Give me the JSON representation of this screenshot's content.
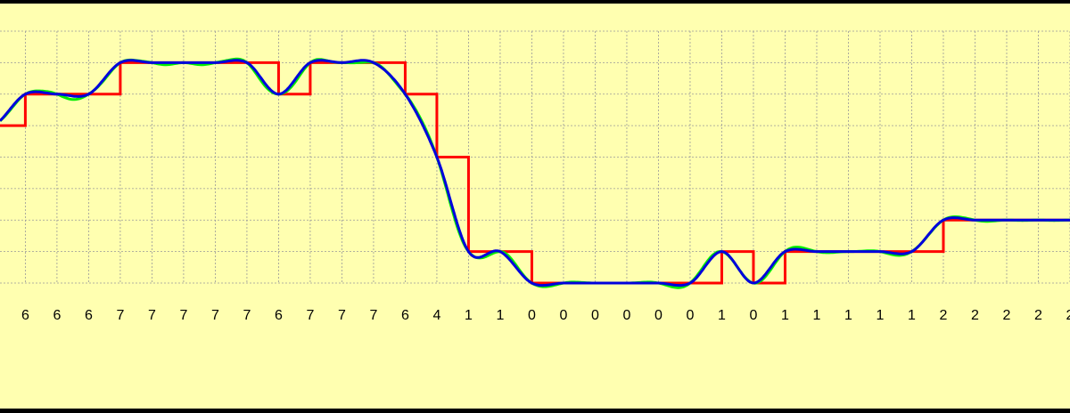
{
  "chart_data": {
    "type": "step",
    "samples": [
      5,
      6,
      6,
      6,
      7,
      7,
      7,
      7,
      7,
      6,
      7,
      7,
      7,
      6,
      4,
      1,
      1,
      0,
      0,
      0,
      0,
      0,
      0,
      1,
      0,
      1,
      1,
      1,
      1,
      1,
      2,
      2,
      2,
      2,
      2
    ],
    "xlim": [
      0.2,
      34
    ],
    "ylim": [
      0,
      8
    ],
    "yticks": [
      0,
      1,
      2,
      3,
      4,
      5,
      6,
      7,
      8
    ],
    "step_color": "#ff0000",
    "sinc_color": "#00ee00",
    "cubic_color": "#0000dd",
    "background": "#ffffb0",
    "grid": true
  }
}
